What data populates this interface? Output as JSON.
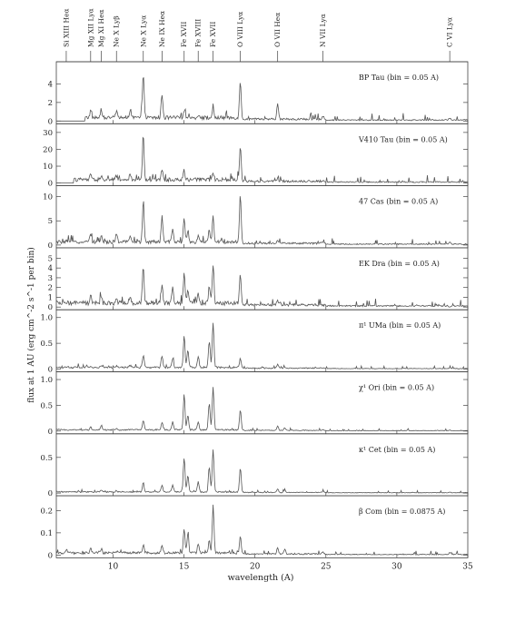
{
  "chart_data": {
    "type": "line",
    "xlabel": "wavelength (A)",
    "ylabel": "flux at 1 AU (erg cm^-2 s^-1 per bin)",
    "xlim": [
      6,
      35
    ],
    "x_ticks": [
      10,
      15,
      20,
      25,
      30,
      35
    ],
    "x_tick_labels": [
      "10",
      "15",
      "20",
      "25",
      "30",
      "35"
    ],
    "grid": false,
    "line_labels": [
      {
        "label": "Si XIII Heα",
        "x": 6.7
      },
      {
        "label": "Mg XII Lyα",
        "x": 8.42
      },
      {
        "label": "Mg XI Heα",
        "x": 9.17
      },
      {
        "label": "Ne X Lyβ",
        "x": 10.24
      },
      {
        "label": "Ne X Lyα",
        "x": 12.13
      },
      {
        "label": "Ne IX Heα",
        "x": 13.45
      },
      {
        "label": "Fe XVII",
        "x": 15.01
      },
      {
        "label": "Fe XVIII",
        "x": 16.0
      },
      {
        "label": "Fe XVII",
        "x": 17.05
      },
      {
        "label": "O VIII Lyα",
        "x": 18.97
      },
      {
        "label": "O VII Heα",
        "x": 21.6
      },
      {
        "label": "N VII Lyα",
        "x": 24.78
      },
      {
        "label": "C VI Lyα",
        "x": 33.73
      }
    ],
    "panels": [
      {
        "label": "BP Tau (bin = 0.05 A)",
        "ylim": [
          0,
          6
        ],
        "y_ticks": [
          0,
          2,
          4
        ],
        "y_tick_labels": [
          "0",
          "2",
          "4"
        ],
        "continuum": 0.45,
        "lines": [
          [
            8.42,
            1.2
          ],
          [
            9.17,
            1.0
          ],
          [
            10.24,
            1.2
          ],
          [
            11.2,
            1.0
          ],
          [
            12.13,
            5.2
          ],
          [
            13.45,
            3.0
          ],
          [
            15.01,
            1.3
          ],
          [
            16.0,
            0.8
          ],
          [
            17.05,
            1.2
          ],
          [
            18.97,
            4.4
          ],
          [
            21.6,
            2.1
          ],
          [
            24.78,
            0.8
          ],
          [
            33.73,
            0.7
          ]
        ]
      },
      {
        "label": "V410 Tau (bin = 0.05 A)",
        "ylim": [
          0,
          33
        ],
        "y_ticks": [
          0,
          10,
          20,
          30
        ],
        "y_tick_labels": [
          "0",
          "10",
          "20",
          "30"
        ],
        "continuum": 2.5,
        "lines": [
          [
            8.42,
            5
          ],
          [
            9.17,
            4
          ],
          [
            10.24,
            5
          ],
          [
            11.2,
            4
          ],
          [
            12.13,
            28
          ],
          [
            13.45,
            8
          ],
          [
            15.01,
            8
          ],
          [
            17.05,
            6
          ],
          [
            18.97,
            23
          ],
          [
            21.6,
            4
          ]
        ]
      },
      {
        "label": "47 Cas (bin = 0.05 A)",
        "ylim": [
          0,
          11.5
        ],
        "y_ticks": [
          0,
          5,
          10
        ],
        "y_tick_labels": [
          "0",
          "5",
          "10"
        ],
        "continuum": 0.8,
        "lines": [
          [
            8.42,
            2.5
          ],
          [
            9.17,
            2.0
          ],
          [
            10.24,
            2.5
          ],
          [
            11.2,
            2.0
          ],
          [
            12.13,
            9.5
          ],
          [
            13.45,
            6.0
          ],
          [
            14.2,
            3.5
          ],
          [
            15.01,
            5.5
          ],
          [
            15.27,
            3.2
          ],
          [
            16.0,
            2.0
          ],
          [
            16.78,
            3.5
          ],
          [
            17.05,
            6.0
          ],
          [
            18.97,
            10.5
          ],
          [
            21.6,
            1.5
          ],
          [
            24.78,
            1.0
          ],
          [
            33.73,
            1.2
          ]
        ]
      },
      {
        "label": "EK Dra (bin = 0.05 A)",
        "ylim": [
          0,
          5.7
        ],
        "y_ticks": [
          0,
          1,
          2,
          3,
          4,
          5
        ],
        "y_tick_labels": [
          "0",
          "1",
          "2",
          "3",
          "4",
          "5"
        ],
        "continuum": 0.5,
        "lines": [
          [
            8.42,
            1.2
          ],
          [
            9.17,
            1.0
          ],
          [
            10.24,
            1.0
          ],
          [
            11.2,
            1.3
          ],
          [
            12.13,
            4.2
          ],
          [
            13.45,
            2.5
          ],
          [
            14.2,
            2.0
          ],
          [
            15.01,
            3.7
          ],
          [
            15.27,
            2.0
          ],
          [
            16.0,
            1.6
          ],
          [
            16.78,
            2.2
          ],
          [
            17.05,
            4.2
          ],
          [
            18.97,
            3.5
          ],
          [
            21.6,
            0.9
          ],
          [
            24.78,
            0.5
          ],
          [
            33.73,
            0.3
          ]
        ]
      },
      {
        "label": "π¹ UMa (bin = 0.05 A)",
        "ylim": [
          0,
          1.08
        ],
        "y_ticks": [
          0,
          0.5,
          1.0
        ],
        "y_tick_labels": [
          "0",
          "0.5",
          "1.0"
        ],
        "continuum": 0.04,
        "lines": [
          [
            8.42,
            0.05
          ],
          [
            9.17,
            0.07
          ],
          [
            10.24,
            0.07
          ],
          [
            11.2,
            0.08
          ],
          [
            12.13,
            0.28
          ],
          [
            13.45,
            0.25
          ],
          [
            14.2,
            0.22
          ],
          [
            15.01,
            0.65
          ],
          [
            15.27,
            0.38
          ],
          [
            16.0,
            0.25
          ],
          [
            16.78,
            0.55
          ],
          [
            17.05,
            0.92
          ],
          [
            18.97,
            0.22
          ],
          [
            21.6,
            0.12
          ],
          [
            22.1,
            0.06
          ],
          [
            24.78,
            0.04
          ],
          [
            33.73,
            0.05
          ]
        ]
      },
      {
        "label": "χ¹ Ori (bin = 0.05 A)",
        "ylim": [
          0,
          1.08
        ],
        "y_ticks": [
          0,
          0.5,
          1.0
        ],
        "y_tick_labels": [
          "0",
          "0.5",
          "1.0"
        ],
        "continuum": 0.03,
        "lines": [
          [
            8.42,
            0.08
          ],
          [
            9.17,
            0.12
          ],
          [
            10.24,
            0.05
          ],
          [
            12.13,
            0.22
          ],
          [
            13.45,
            0.18
          ],
          [
            14.2,
            0.18
          ],
          [
            15.01,
            0.72
          ],
          [
            15.27,
            0.32
          ],
          [
            16.0,
            0.18
          ],
          [
            16.78,
            0.55
          ],
          [
            17.05,
            0.85
          ],
          [
            18.97,
            0.42
          ],
          [
            21.6,
            0.12
          ],
          [
            22.1,
            0.08
          ],
          [
            24.78,
            0.04
          ],
          [
            33.73,
            0.04
          ]
        ]
      },
      {
        "label": "κ¹ Cet (bin = 0.05 A)",
        "ylim": [
          0,
          0.78
        ],
        "y_ticks": [
          0,
          0.5
        ],
        "y_tick_labels": [
          "0",
          "0.5"
        ],
        "continuum": 0.02,
        "lines": [
          [
            8.42,
            0.03
          ],
          [
            9.17,
            0.05
          ],
          [
            10.24,
            0.03
          ],
          [
            12.13,
            0.15
          ],
          [
            13.45,
            0.12
          ],
          [
            14.2,
            0.12
          ],
          [
            15.01,
            0.5
          ],
          [
            15.27,
            0.25
          ],
          [
            16.0,
            0.16
          ],
          [
            16.78,
            0.38
          ],
          [
            17.05,
            0.62
          ],
          [
            18.97,
            0.36
          ],
          [
            21.6,
            0.07
          ],
          [
            22.1,
            0.05
          ],
          [
            24.78,
            0.03
          ],
          [
            33.73,
            0.03
          ]
        ]
      },
      {
        "label": "β Com (bin = 0.0875 A)",
        "ylim": [
          0,
          0.25
        ],
        "y_ticks": [
          0,
          0.1,
          0.2
        ],
        "y_tick_labels": [
          "0",
          "0.1",
          "0.2"
        ],
        "continuum": 0.012,
        "lines": [
          [
            6.7,
            0.03
          ],
          [
            8.42,
            0.03
          ],
          [
            9.17,
            0.03
          ],
          [
            10.24,
            0.02
          ],
          [
            12.13,
            0.05
          ],
          [
            13.45,
            0.05
          ],
          [
            15.01,
            0.12
          ],
          [
            15.27,
            0.1
          ],
          [
            16.0,
            0.05
          ],
          [
            16.78,
            0.07
          ],
          [
            17.05,
            0.22
          ],
          [
            18.97,
            0.09
          ],
          [
            21.6,
            0.04
          ],
          [
            22.1,
            0.035
          ],
          [
            24.78,
            0.02
          ],
          [
            33.73,
            0.02
          ]
        ]
      }
    ]
  }
}
